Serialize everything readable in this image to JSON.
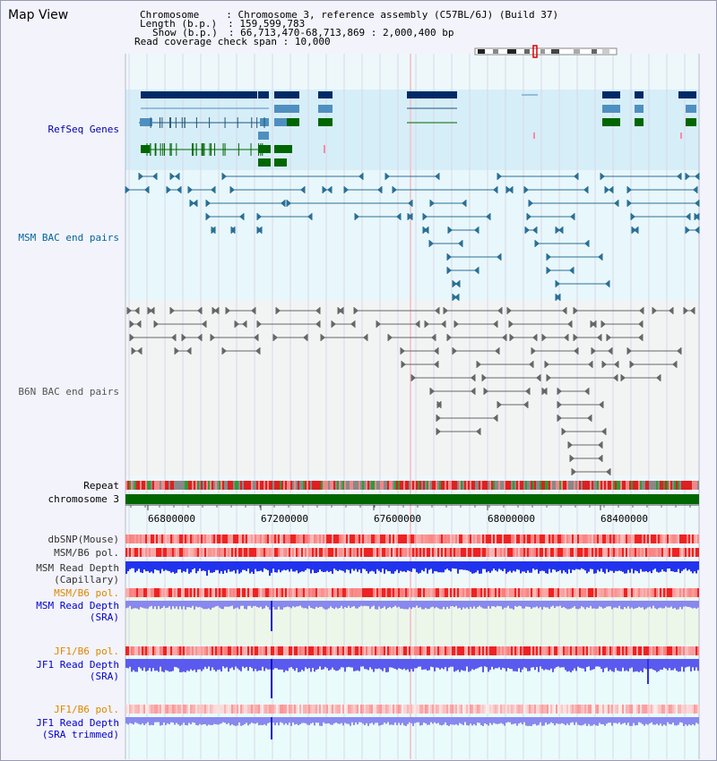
{
  "title": "Map View",
  "info": {
    "chromosome_key": "Chromosome",
    "chromosome_val": "Chromosome 3, reference assembly (C57BL/6J) (Build 37)",
    "length_key": "Length (b.p.)",
    "length_val": "159,599,783",
    "show_key": "Show (b.p.)",
    "show_val": "66,713,470-68,713,869 : 2,000,400 bp",
    "coverage_key": "Read coverage check span",
    "coverage_val": "10,000"
  },
  "tracks": {
    "refseq": "RefSeq Genes",
    "msm_bac": "MSM BAC end pairs",
    "b6n_bac": "B6N BAC end pairs",
    "repeat": "Repeat",
    "chromosome": "chromosome 3",
    "dbsnp": "dbSNP(Mouse)",
    "msm_b6_pol_1": "MSM/B6 pol.",
    "msm_read_depth_cap_1": "MSM Read Depth",
    "msm_read_depth_cap_2": "(Capillary)",
    "msm_b6_pol_2": "MSM/B6 pol.",
    "msm_read_depth_sra_1": "MSM Read Depth",
    "msm_read_depth_sra_2": "(SRA)",
    "jf1_b6_pol_1": "JF1/B6 pol.",
    "jf1_read_depth_sra_1": "JF1 Read Depth",
    "jf1_read_depth_sra_2": "(SRA)",
    "jf1_b6_pol_2": "JF1/B6 pol.",
    "jf1_read_depth_trim_1": "JF1 Read Depth",
    "jf1_read_depth_trim_2": "(SRA trimmed)"
  },
  "axis": {
    "ticks": [
      "66800000",
      "67200000",
      "67600000",
      "68000000",
      "68400000"
    ]
  },
  "colors": {
    "refseq_label": "#0000aa",
    "msm_label": "#006699",
    "b6n_label": "#555555",
    "pol_label_orange": "#dd8800",
    "depth_label_blue": "#0000cc",
    "gene_dark": "#002a66",
    "gene_mid": "#4f8fbf",
    "gene_green": "#006600",
    "chromosome_green": "#006600",
    "msm_bac": "#2a6f95",
    "b6n_bac": "#666666"
  }
}
